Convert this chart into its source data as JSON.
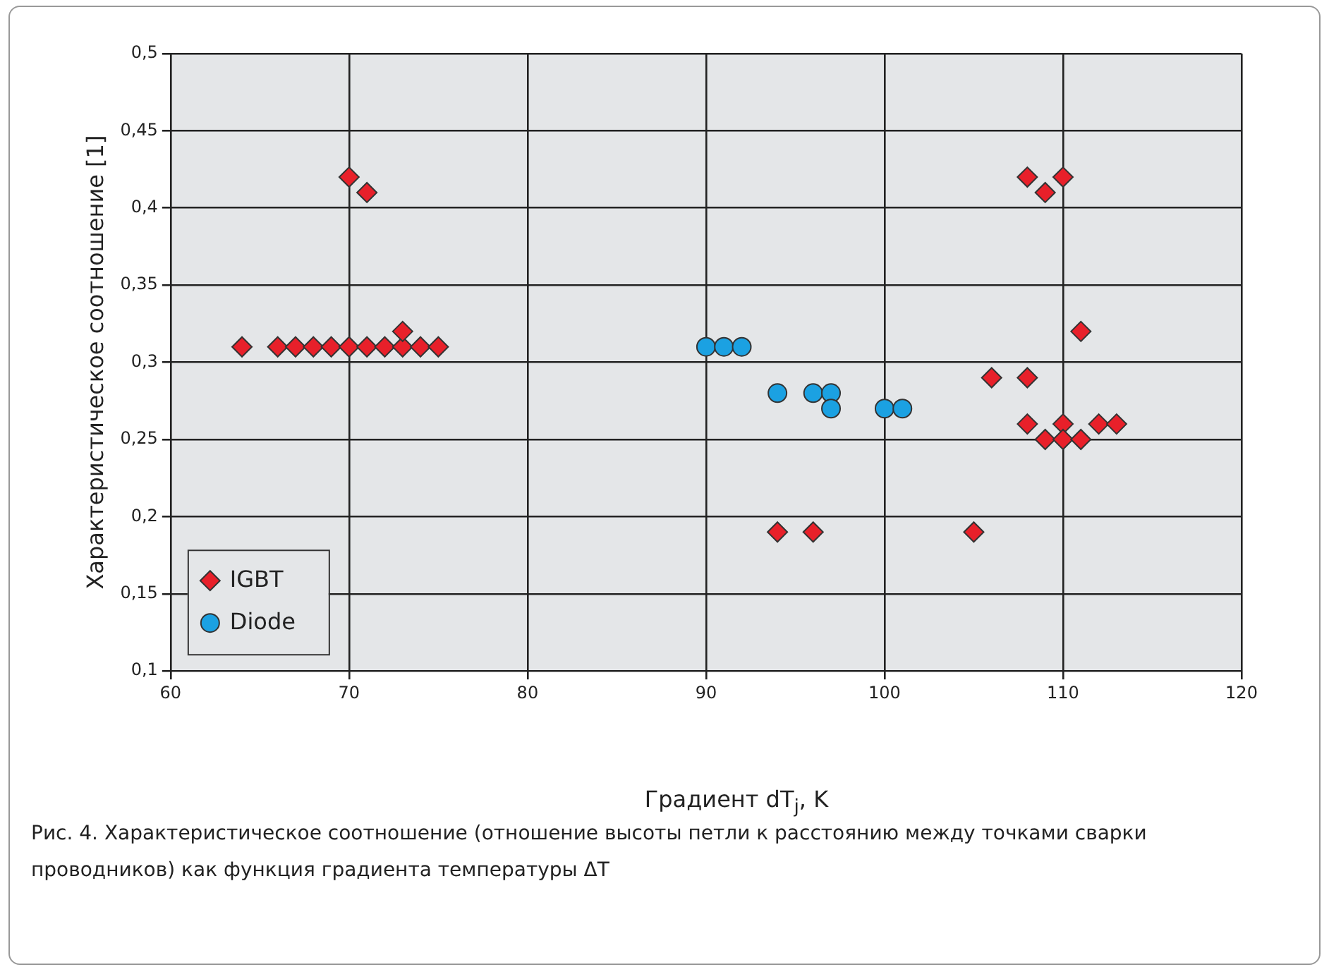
{
  "chart_data": {
    "type": "scatter",
    "xlabel": "Градиент dT$_{j}$, K",
    "ylabel": "Характеристическое соотношение [1]",
    "xlim": [
      60,
      120
    ],
    "xticks": [
      60,
      70,
      80,
      90,
      100,
      110,
      120
    ],
    "ylim": [
      0.1,
      0.5
    ],
    "yticks": [
      {
        "value": 0.1,
        "label": "0,1"
      },
      {
        "value": 0.15,
        "label": "0,15"
      },
      {
        "value": 0.2,
        "label": "0,2"
      },
      {
        "value": 0.25,
        "label": "0,25"
      },
      {
        "value": 0.3,
        "label": "0,3"
      },
      {
        "value": 0.35,
        "label": "0,35"
      },
      {
        "value": 0.4,
        "label": "0,4"
      },
      {
        "value": 0.45,
        "label": "0,45"
      },
      {
        "value": 0.5,
        "label": "0,5"
      }
    ],
    "grid": true,
    "legend": "bottom left",
    "series": [
      {
        "name": "IGBT",
        "color": "#e8202a",
        "marker": "diamond",
        "x": [
          64,
          66,
          67,
          68,
          69,
          70,
          71,
          72,
          73,
          73,
          74,
          75,
          70,
          71,
          94,
          96,
          105,
          106,
          108,
          108,
          109,
          110,
          111,
          108,
          110,
          109,
          110,
          111,
          112,
          113
        ],
        "values": [
          0.31,
          0.31,
          0.31,
          0.31,
          0.31,
          0.31,
          0.31,
          0.31,
          0.31,
          0.32,
          0.31,
          0.31,
          0.42,
          0.41,
          0.19,
          0.19,
          0.19,
          0.29,
          0.29,
          0.42,
          0.41,
          0.42,
          0.32,
          0.26,
          0.26,
          0.25,
          0.25,
          0.25,
          0.26,
          0.26
        ]
      },
      {
        "name": "Diode",
        "color": "#1ba1e2",
        "marker": "circle",
        "x": [
          90,
          91,
          92,
          94,
          96,
          97,
          97,
          100,
          101
        ],
        "values": [
          0.31,
          0.31,
          0.31,
          0.28,
          0.28,
          0.28,
          0.27,
          0.27,
          0.27
        ]
      }
    ],
    "annotations": [
      "Рис. 4. Характеристическое соотношение (отношение высоты петли к расстоянию между точками сварки проводников) как функция градиента температуры ΔT"
    ]
  }
}
